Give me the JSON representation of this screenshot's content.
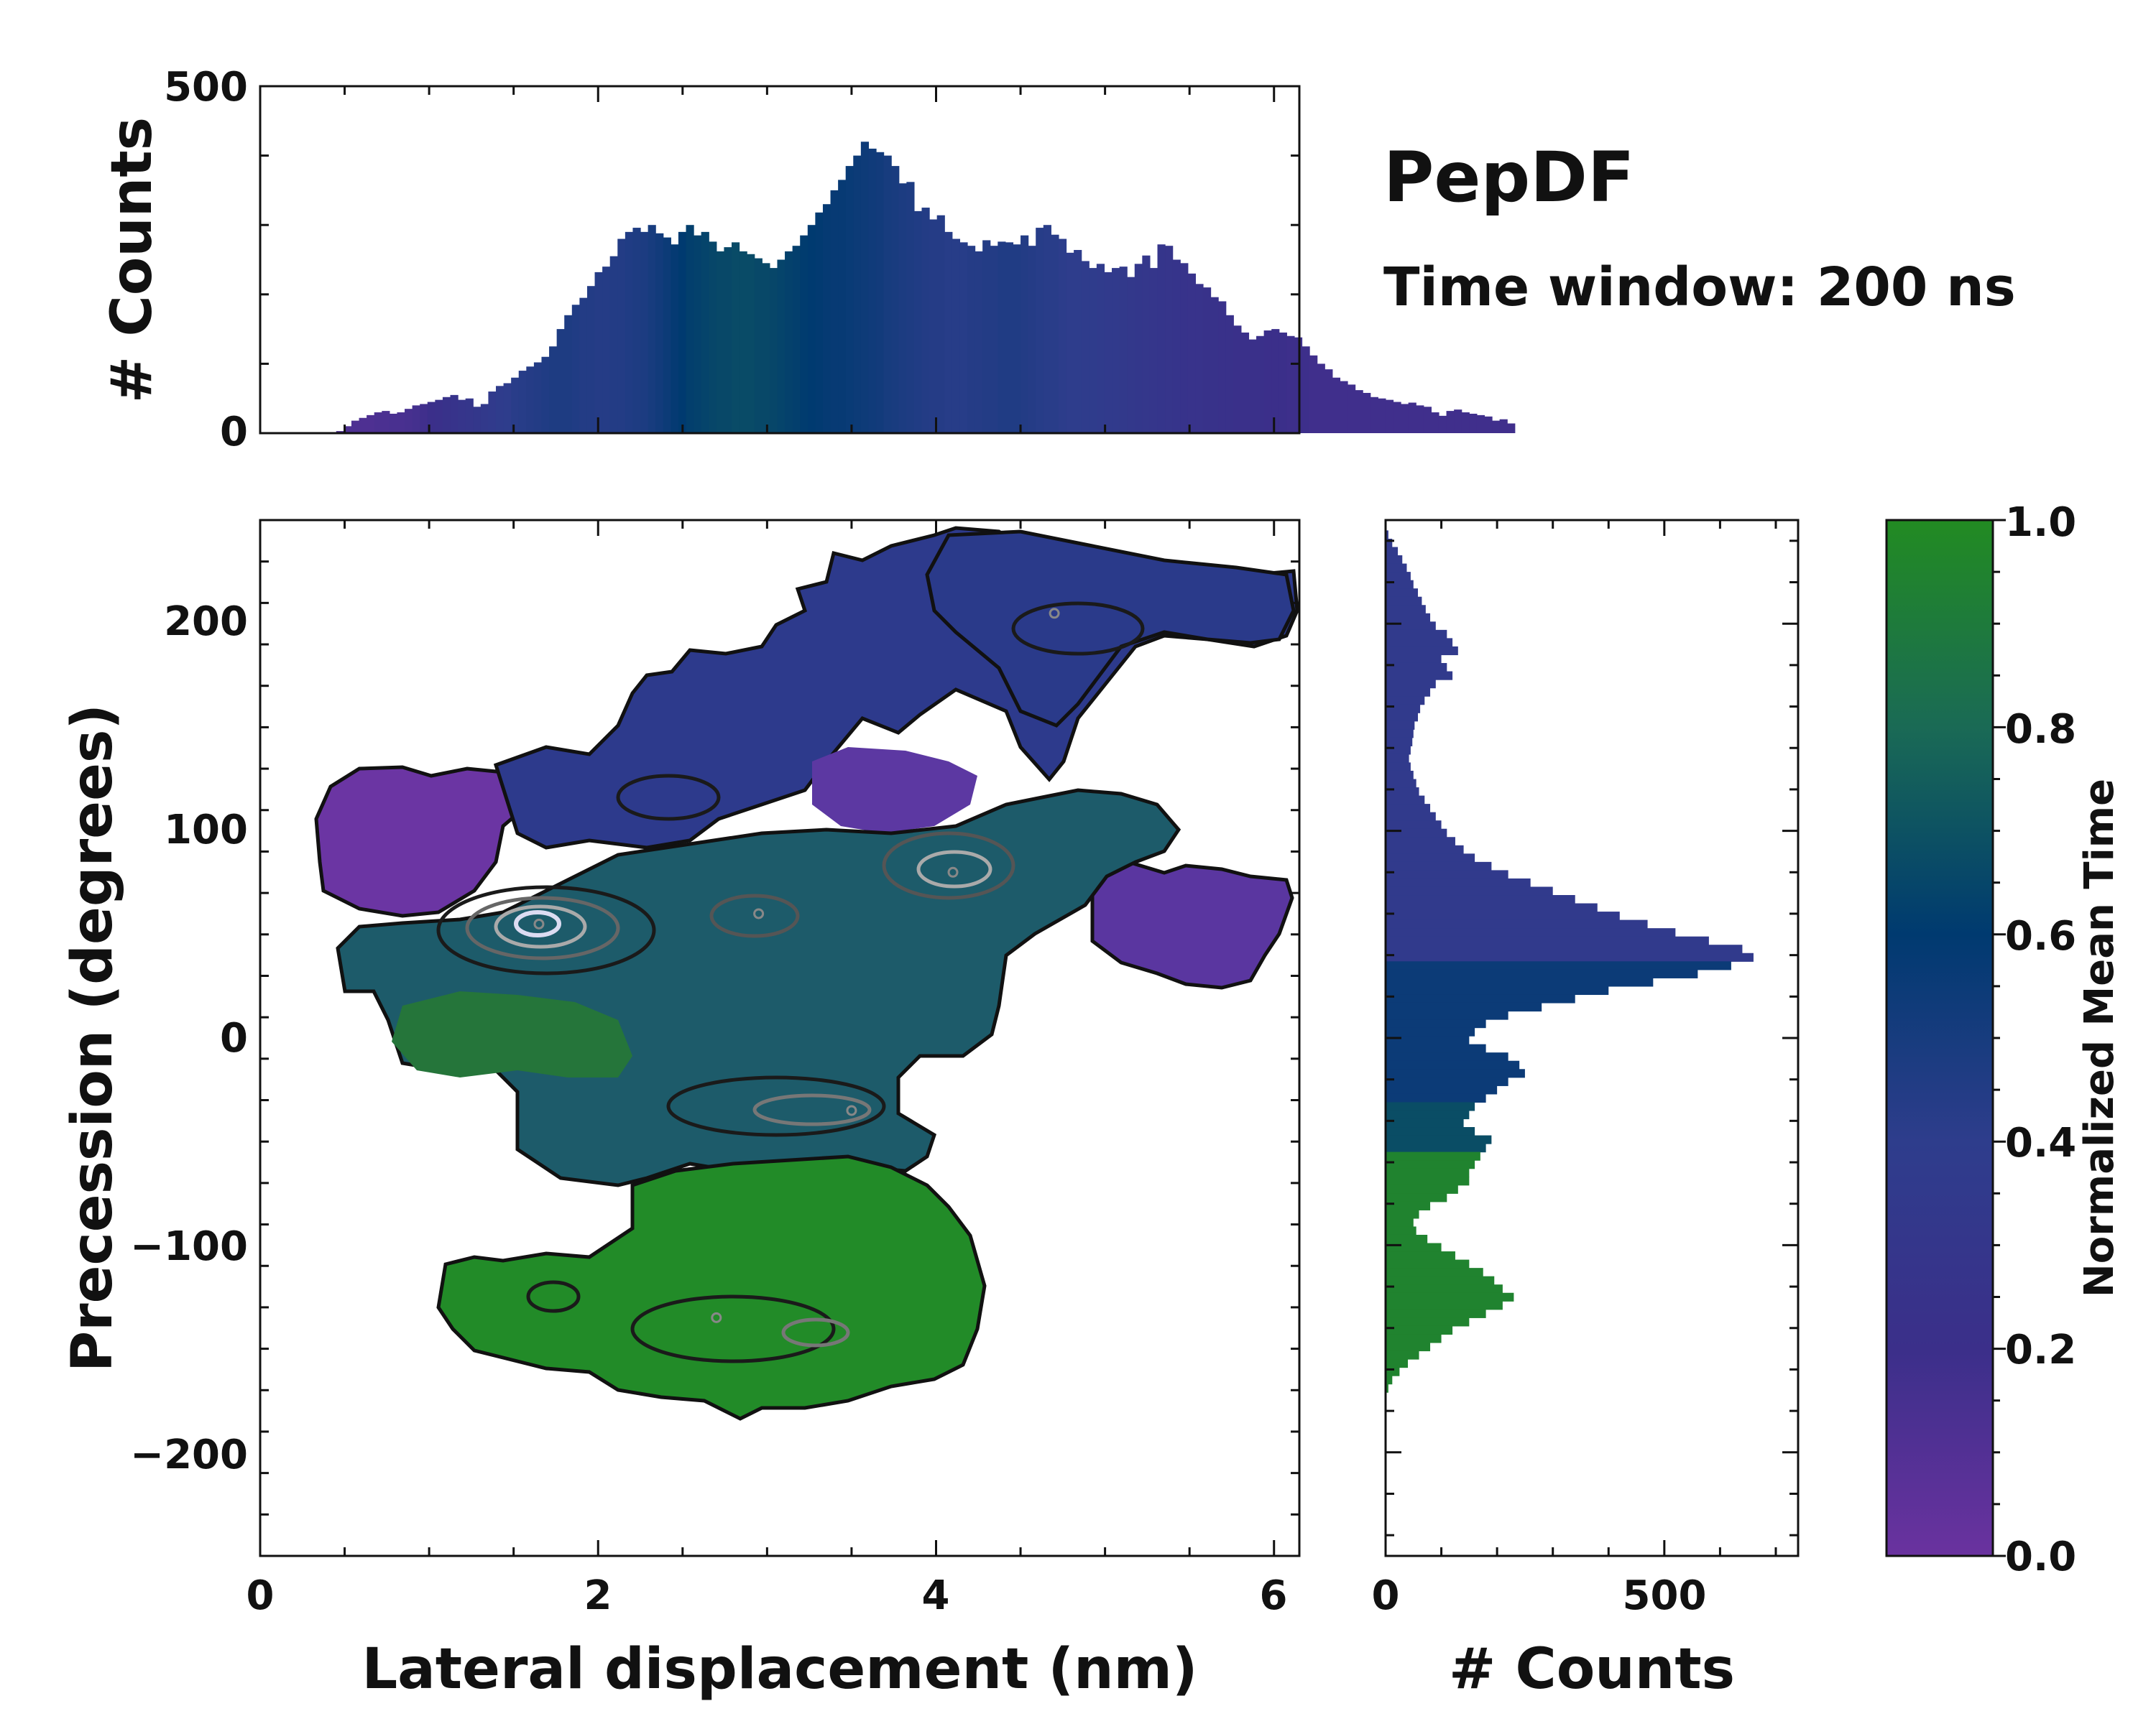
{
  "figure": {
    "title": "PepDF",
    "subtitle": "Time window: 200 ns"
  },
  "chart_data": [
    {
      "id": "top-histogram",
      "type": "bar",
      "title": "",
      "xlabel": "",
      "ylabel": "# Counts",
      "xlim": [
        0,
        6.15
      ],
      "ylim": [
        0,
        500
      ],
      "yticks": [
        "0",
        "500"
      ],
      "bin_start": 0.45,
      "bin_width": 0.045,
      "values": [
        3,
        10,
        18,
        22,
        26,
        30,
        32,
        28,
        30,
        35,
        40,
        42,
        45,
        48,
        52,
        55,
        48,
        50,
        38,
        42,
        60,
        68,
        72,
        80,
        90,
        96,
        102,
        110,
        125,
        150,
        170,
        185,
        195,
        212,
        232,
        240,
        255,
        280,
        290,
        296,
        290,
        300,
        288,
        282,
        272,
        290,
        300,
        285,
        290,
        276,
        262,
        268,
        275,
        262,
        258,
        252,
        245,
        238,
        250,
        262,
        270,
        285,
        300,
        318,
        330,
        350,
        365,
        385,
        400,
        420,
        410,
        405,
        400,
        385,
        360,
        362,
        320,
        325,
        308,
        314,
        290,
        280,
        275,
        270,
        262,
        278,
        270,
        276,
        275,
        272,
        285,
        270,
        296,
        300,
        286,
        280,
        260,
        264,
        248,
        238,
        244,
        232,
        238,
        240,
        225,
        244,
        256,
        238,
        272,
        270,
        250,
        245,
        230,
        215,
        210,
        196,
        190,
        170,
        155,
        145,
        135,
        140,
        148,
        150,
        145,
        140,
        138,
        125,
        112,
        100,
        92,
        80,
        75,
        70,
        62,
        58,
        52,
        50,
        48,
        45,
        42,
        44,
        40,
        38,
        30,
        25,
        32,
        34,
        30,
        28,
        26,
        24,
        18,
        20,
        14
      ],
      "color_scale": "Normalized Mean Time",
      "bar_colors": [
        0.12,
        0.12,
        0.12,
        0.12,
        0.12,
        0.13,
        0.13,
        0.14,
        0.14,
        0.15,
        0.16,
        0.18,
        0.2,
        0.22,
        0.24,
        0.26,
        0.28,
        0.3,
        0.32,
        0.34,
        0.36,
        0.38,
        0.4,
        0.42,
        0.43,
        0.44,
        0.45,
        0.46,
        0.47,
        0.47,
        0.47,
        0.46,
        0.45,
        0.45,
        0.44,
        0.44,
        0.45,
        0.45,
        0.46,
        0.47,
        0.48,
        0.5,
        0.52,
        0.55,
        0.58,
        0.6,
        0.62,
        0.63,
        0.64,
        0.65,
        0.66,
        0.66,
        0.67,
        0.67,
        0.67,
        0.66,
        0.66,
        0.65,
        0.64,
        0.63,
        0.62,
        0.61,
        0.6,
        0.59,
        0.58,
        0.57,
        0.57,
        0.56,
        0.55,
        0.54,
        0.53,
        0.52,
        0.5,
        0.49,
        0.48,
        0.47,
        0.46,
        0.45,
        0.44,
        0.44,
        0.43,
        0.43,
        0.43,
        0.44,
        0.44,
        0.45,
        0.45,
        0.46,
        0.46,
        0.46,
        0.45,
        0.44,
        0.43,
        0.42,
        0.42,
        0.41,
        0.4,
        0.4,
        0.39,
        0.38,
        0.37,
        0.36,
        0.35,
        0.34,
        0.33,
        0.32,
        0.31,
        0.3,
        0.29,
        0.28,
        0.27,
        0.26,
        0.25,
        0.25,
        0.24,
        0.24,
        0.23,
        0.23,
        0.22,
        0.22,
        0.21,
        0.21,
        0.2,
        0.2,
        0.2,
        0.19,
        0.19,
        0.19,
        0.18,
        0.18,
        0.18,
        0.18,
        0.18,
        0.18,
        0.18,
        0.18,
        0.18,
        0.18,
        0.18,
        0.18,
        0.18,
        0.18,
        0.18,
        0.18,
        0.18,
        0.18,
        0.18,
        0.18,
        0.18,
        0.18,
        0.18,
        0.18,
        0.18,
        0.18,
        0.18,
        0.18
      ]
    },
    {
      "id": "main-heatmap",
      "type": "heatmap",
      "title": "",
      "xlabel": "Lateral displacement (nm)",
      "ylabel": "Precession (degrees)",
      "xlim": [
        0,
        6.15
      ],
      "ylim": [
        -250,
        250
      ],
      "xticks": [
        "0",
        "2",
        "4",
        "6"
      ],
      "xtick_values": [
        0,
        2,
        4,
        6
      ],
      "yticks": [
        "−200",
        "−100",
        "0",
        "100",
        "200"
      ],
      "ytick_values": [
        -200,
        -100,
        0,
        100,
        200
      ],
      "color_scale": "Normalized Mean Time",
      "density_peaks": [
        {
          "x": 1.65,
          "y": 55,
          "level": "highest"
        },
        {
          "x": 4.1,
          "y": 80,
          "level": "high"
        },
        {
          "x": 2.95,
          "y": 60,
          "level": "medium"
        },
        {
          "x": 3.5,
          "y": -35,
          "level": "medium"
        },
        {
          "x": 2.7,
          "y": -135,
          "level": "medium"
        },
        {
          "x": 4.7,
          "y": 205,
          "level": "medium"
        }
      ]
    },
    {
      "id": "right-histogram",
      "type": "bar",
      "orientation": "horizontal",
      "title": "",
      "xlabel": "# Counts",
      "ylabel": "",
      "xlim": [
        0,
        740
      ],
      "ylim": [
        -250,
        250
      ],
      "xticks": [
        "0",
        "500"
      ],
      "xtick_values": [
        0,
        500
      ],
      "bin_start": 245,
      "bin_width": -4,
      "values": [
        5,
        12,
        22,
        30,
        38,
        45,
        50,
        58,
        65,
        72,
        80,
        90,
        110,
        120,
        130,
        100,
        110,
        120,
        90,
        80,
        70,
        62,
        58,
        52,
        50,
        48,
        45,
        42,
        45,
        50,
        55,
        60,
        70,
        80,
        90,
        100,
        110,
        125,
        140,
        160,
        190,
        220,
        260,
        300,
        340,
        380,
        420,
        470,
        520,
        580,
        640,
        660,
        620,
        560,
        480,
        400,
        340,
        280,
        220,
        180,
        160,
        150,
        180,
        220,
        240,
        250,
        220,
        200,
        180,
        160,
        150,
        140,
        160,
        190,
        180,
        170,
        160,
        150,
        150,
        130,
        110,
        80,
        60,
        50,
        55,
        75,
        100,
        125,
        150,
        175,
        195,
        210,
        230,
        210,
        180,
        150,
        120,
        100,
        80,
        60,
        40,
        25,
        12,
        5
      ]
    }
  ],
  "colorbar": {
    "label": "Normalized Mean Time",
    "range": [
      0,
      1
    ],
    "ticks": [
      "0.0",
      "0.2",
      "0.4",
      "0.6",
      "0.8",
      "1.0"
    ],
    "tick_values": [
      0,
      0.2,
      0.4,
      0.6,
      0.8,
      1.0
    ],
    "colors": [
      "#6a329f",
      "#3b2f8a",
      "#2e3d8c",
      "#003a70",
      "#1a6a55",
      "#228b22"
    ]
  },
  "region_colors": {
    "purple": "#6b35a3",
    "blue": "#2d3a8c",
    "teal": "#1a5a60",
    "green": "#228b28"
  }
}
